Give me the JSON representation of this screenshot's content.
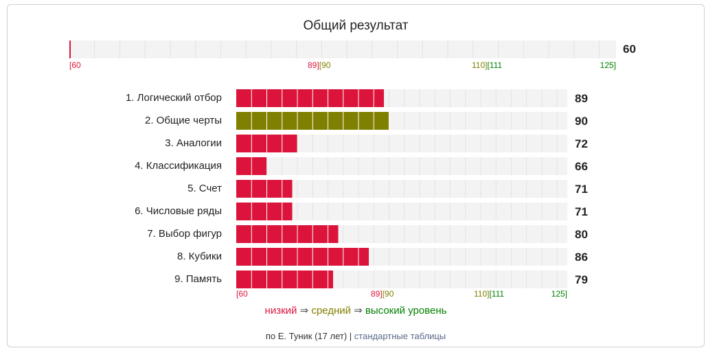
{
  "colors": {
    "low": "#dc143c",
    "mid": "#808000",
    "high": "#008000",
    "track": "#f3f3f3",
    "cell_line": "#ffffff"
  },
  "overall": {
    "title": "Общий результат",
    "value": 60,
    "value_label": "60"
  },
  "scale": {
    "labels": [
      {
        "text": "[60",
        "color": "low"
      },
      {
        "text": "89][90",
        "color": "mixed_low_mid"
      },
      {
        "text": "110][111",
        "color": "mixed_mid_high"
      },
      {
        "text": "125]",
        "color": "high"
      }
    ],
    "parts": {
      "p60": "[60",
      "p89": "89]",
      "p90": "[90",
      "p110": "110]",
      "p111": "[111",
      "p125": "125]"
    }
  },
  "chart_data": {
    "type": "bar",
    "title": "Общий результат",
    "xlim": [
      60,
      125
    ],
    "thresholds": {
      "low": [
        60,
        89
      ],
      "mid": [
        90,
        110
      ],
      "high": [
        111,
        125
      ]
    },
    "overall_value": 60,
    "categories": [
      "1. Логический отбор",
      "2. Общие черты",
      "3. Аналогии",
      "4. Классификация",
      "5. Счет",
      "6. Числовые ряды",
      "7. Выбор фигур",
      "8. Кубики",
      "9. Память"
    ],
    "values": [
      89,
      90,
      72,
      66,
      71,
      71,
      80,
      86,
      79
    ],
    "value_labels": [
      "89",
      "90",
      "72",
      "66",
      "71",
      "71",
      "80",
      "86",
      "79"
    ]
  },
  "legend": {
    "low": "низкий",
    "arrow": "⇒",
    "mid": "средний",
    "high": "высокий уровень"
  },
  "footer": {
    "author": "по Е. Туник (17 лет)",
    "separator": "|",
    "link": "стандартные таблицы"
  }
}
